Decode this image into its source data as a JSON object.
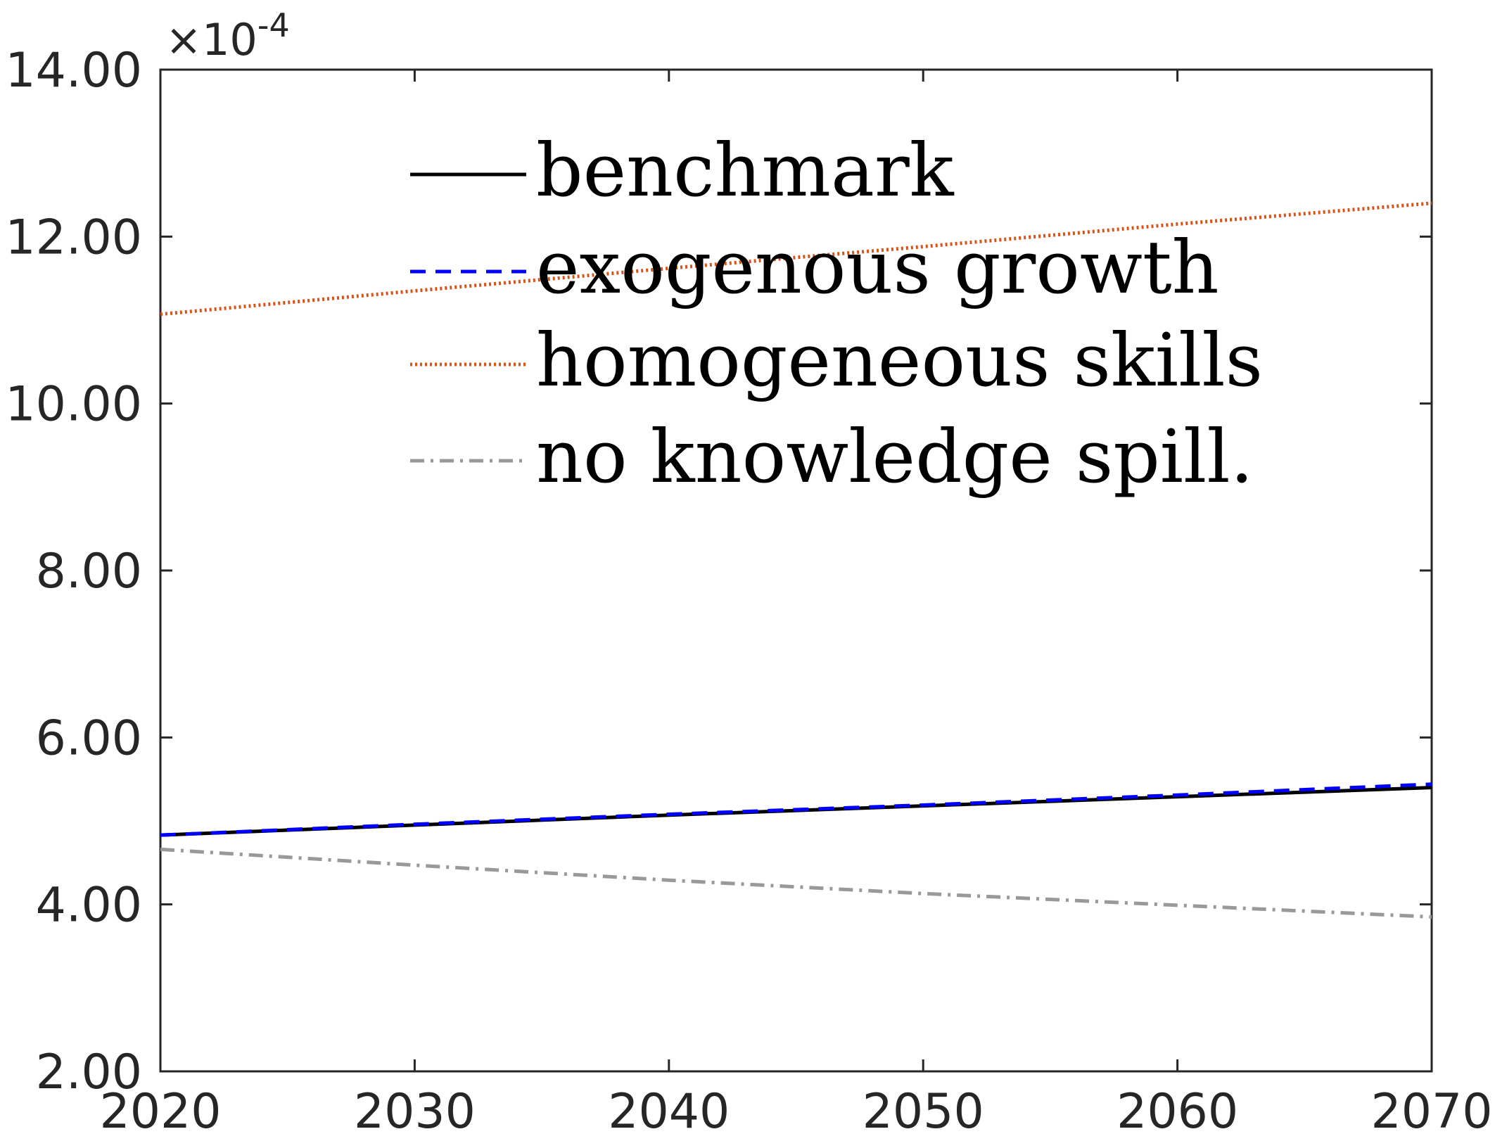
{
  "chart_data": {
    "type": "line",
    "title": "",
    "xlabel": "",
    "ylabel": "",
    "y_multiplier_label": "×10",
    "y_multiplier_exponent": "-4",
    "xlim": [
      2020,
      2070
    ],
    "ylim": [
      2,
      14
    ],
    "x_ticks": [
      "2020",
      "2030",
      "2040",
      "2050",
      "2060",
      "2070"
    ],
    "y_ticks": [
      "2.00",
      "4.00",
      "6.00",
      "8.00",
      "10.00",
      "12.00",
      "14.00"
    ],
    "grid": false,
    "legend_position": "top",
    "x": [
      2020,
      2030,
      2040,
      2050,
      2060,
      2070
    ],
    "series": [
      {
        "name": "benchmark",
        "color": "#000000",
        "style": "solid",
        "values": [
          4.83,
          4.95,
          5.07,
          5.18,
          5.29,
          5.4
        ]
      },
      {
        "name": "exogenous growth",
        "color": "#0000ff",
        "style": "dashed",
        "values": [
          4.83,
          4.96,
          5.08,
          5.19,
          5.31,
          5.44
        ]
      },
      {
        "name": "homogeneous skills",
        "color": "#d95319",
        "style": "dotted",
        "values": [
          11.07,
          11.35,
          11.62,
          11.88,
          12.15,
          12.4
        ]
      },
      {
        "name": "no knowledge spill.",
        "color": "#999999",
        "style": "dashdot",
        "values": [
          4.66,
          4.47,
          4.29,
          4.13,
          3.99,
          3.85
        ]
      }
    ]
  }
}
